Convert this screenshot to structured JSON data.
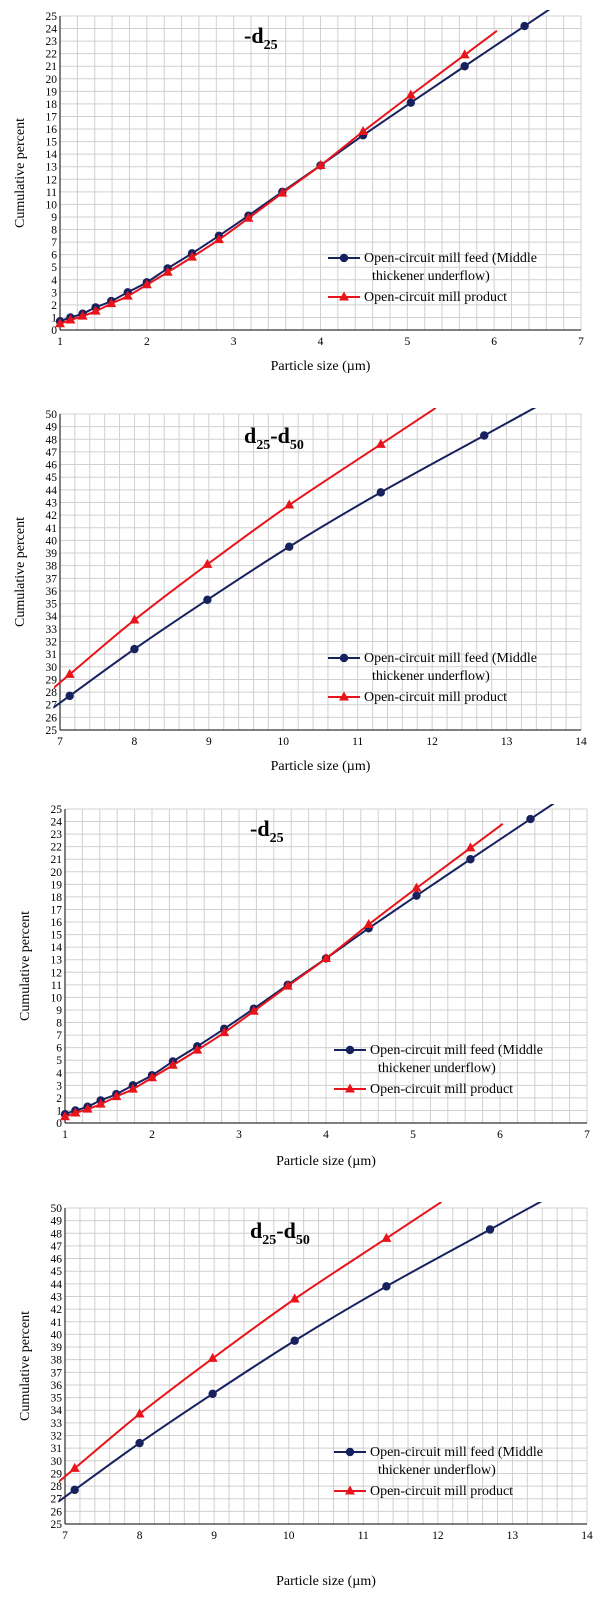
{
  "colors": {
    "feed": "#17215e",
    "product": "#e8141b",
    "grid": "#d0d0d0",
    "axis": "#000000"
  },
  "legend_placement": "bottom-right",
  "chart_data": [
    {
      "type": "line",
      "title_main": "-d",
      "title_sub": "25",
      "xlabel": "Particle size (µm)",
      "ylabel": "Cumulative percent",
      "xlim": [
        1,
        7
      ],
      "ylim": [
        0,
        25
      ],
      "xticks": [
        "1",
        "2",
        "3",
        "4",
        "5",
        "6",
        "7"
      ],
      "yticks": [
        "0",
        "1",
        "2",
        "3",
        "4",
        "5",
        "6",
        "7",
        "8",
        "9",
        "10",
        "11",
        "12",
        "13",
        "14",
        "15",
        "16",
        "17",
        "18",
        "19",
        "20",
        "21",
        "22",
        "23",
        "24",
        "25"
      ],
      "grid": true,
      "series": [
        {
          "name": "Open-circuit mill feed (Middle thickener underflow)",
          "marker": "circle",
          "x": [
            1,
            1.12,
            1.26,
            1.41,
            1.59,
            1.78,
            2.0,
            2.24,
            2.52,
            2.83,
            3.17,
            3.56,
            4.0,
            4.49,
            5.04,
            5.66,
            6.35
          ],
          "y": [
            0.7,
            1.0,
            1.3,
            1.8,
            2.3,
            3.0,
            3.8,
            4.9,
            6.1,
            7.5,
            9.1,
            11.0,
            13.1,
            15.5,
            18.1,
            21.0,
            24.2
          ]
        },
        {
          "name": "Open-circuit mill product",
          "marker": "triangle",
          "x": [
            1,
            1.12,
            1.26,
            1.41,
            1.59,
            1.78,
            2.0,
            2.24,
            2.52,
            2.83,
            3.17,
            3.56,
            4.0,
            4.49,
            5.04,
            5.66
          ],
          "y": [
            0.5,
            0.8,
            1.1,
            1.5,
            2.1,
            2.7,
            3.6,
            4.6,
            5.8,
            7.2,
            8.9,
            10.9,
            13.1,
            15.8,
            18.7,
            21.9
          ]
        }
      ]
    },
    {
      "type": "line",
      "title_main": "d",
      "title_sub": "25",
      "title_main2": "-d",
      "title_sub2": "50",
      "xlabel": "Particle size (µm)",
      "ylabel": "Cumulative percent",
      "xlim": [
        7,
        14
      ],
      "ylim": [
        25,
        50
      ],
      "xticks": [
        "7",
        "8",
        "9",
        "10",
        "11",
        "12",
        "13",
        "14"
      ],
      "yticks": [
        "25",
        "26",
        "27",
        "28",
        "29",
        "30",
        "31",
        "32",
        "33",
        "34",
        "35",
        "36",
        "37",
        "38",
        "39",
        "40",
        "41",
        "42",
        "43",
        "44",
        "45",
        "46",
        "47",
        "48",
        "49",
        "50"
      ],
      "grid": true,
      "series": [
        {
          "name": "Open-circuit mill feed (Middle thickener underflow)",
          "marker": "circle",
          "x": [
            7.13,
            8.0,
            8.98,
            10.08,
            11.31,
            12.7
          ],
          "y": [
            27.7,
            31.4,
            35.3,
            39.5,
            43.8,
            48.3
          ]
        },
        {
          "name": "Open-circuit mill product",
          "marker": "triangle",
          "x": [
            7.13,
            8.0,
            8.98,
            10.08,
            11.31
          ],
          "y": [
            29.4,
            33.7,
            38.1,
            42.8,
            47.6
          ]
        }
      ]
    },
    {
      "type": "line",
      "title_main": "-d",
      "title_sub": "25",
      "xlabel": "Particle size (µm)",
      "ylabel": "Cumulative percent",
      "xlim": [
        1,
        7
      ],
      "ylim": [
        0,
        25
      ],
      "xticks": [
        "1",
        "2",
        "3",
        "4",
        "5",
        "6",
        "7"
      ],
      "yticks": [
        "0",
        "1",
        "2",
        "3",
        "4",
        "5",
        "6",
        "7",
        "8",
        "9",
        "10",
        "11",
        "12",
        "13",
        "14",
        "15",
        "16",
        "17",
        "18",
        "19",
        "20",
        "21",
        "22",
        "23",
        "24",
        "25"
      ],
      "grid": true,
      "series": [
        {
          "name": "Open-circuit mill feed (Middle thickener underflow)",
          "marker": "circle",
          "x": [
            1,
            1.12,
            1.26,
            1.41,
            1.59,
            1.78,
            2.0,
            2.24,
            2.52,
            2.83,
            3.17,
            3.56,
            4.0,
            4.49,
            5.04,
            5.66,
            6.35
          ],
          "y": [
            0.7,
            1.0,
            1.3,
            1.8,
            2.3,
            3.0,
            3.8,
            4.9,
            6.1,
            7.5,
            9.1,
            11.0,
            13.1,
            15.5,
            18.1,
            21.0,
            24.2
          ]
        },
        {
          "name": "Open-circuit mill product",
          "marker": "triangle",
          "x": [
            1,
            1.12,
            1.26,
            1.41,
            1.59,
            1.78,
            2.0,
            2.24,
            2.52,
            2.83,
            3.17,
            3.56,
            4.0,
            4.49,
            5.04,
            5.66
          ],
          "y": [
            0.5,
            0.8,
            1.1,
            1.5,
            2.1,
            2.7,
            3.6,
            4.6,
            5.8,
            7.2,
            8.9,
            10.9,
            13.1,
            15.8,
            18.7,
            21.9
          ]
        }
      ]
    },
    {
      "type": "line",
      "title_main": "d",
      "title_sub": "25",
      "title_main2": "-d",
      "title_sub2": "50",
      "xlabel": "Particle size (µm)",
      "ylabel": "Cumulative percent",
      "xlim": [
        7,
        14
      ],
      "ylim": [
        25,
        50
      ],
      "xticks": [
        "7",
        "8",
        "9",
        "10",
        "11",
        "12",
        "13",
        "14"
      ],
      "yticks": [
        "25",
        "26",
        "27",
        "28",
        "29",
        "30",
        "31",
        "32",
        "33",
        "34",
        "35",
        "36",
        "37",
        "38",
        "39",
        "40",
        "41",
        "42",
        "43",
        "44",
        "45",
        "46",
        "47",
        "48",
        "49",
        "50"
      ],
      "grid": true,
      "series": [
        {
          "name": "Open-circuit mill feed (Middle thickener underflow)",
          "marker": "circle",
          "x": [
            7.13,
            8.0,
            8.98,
            10.08,
            11.31,
            12.7
          ],
          "y": [
            27.7,
            31.4,
            35.3,
            39.5,
            43.8,
            48.3
          ]
        },
        {
          "name": "Open-circuit mill product",
          "marker": "triangle",
          "x": [
            7.13,
            8.0,
            8.98,
            10.08,
            11.31
          ],
          "y": [
            29.4,
            33.7,
            38.1,
            42.8,
            47.6
          ]
        }
      ]
    }
  ]
}
